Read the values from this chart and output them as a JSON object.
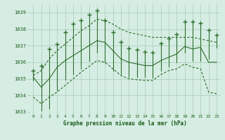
{
  "title": "Graphe pression niveau de la mer (hPa)",
  "hours": [
    0,
    1,
    2,
    3,
    4,
    5,
    6,
    7,
    8,
    9,
    10,
    11,
    12,
    13,
    14,
    15,
    16,
    17,
    18,
    19,
    20,
    21,
    22,
    23
  ],
  "pressure_spike_top": [
    1035.5,
    1035.8,
    1036.8,
    1037.1,
    1037.8,
    1038.3,
    1038.55,
    1038.85,
    1039.1,
    1038.55,
    1037.8,
    1037.2,
    1036.85,
    1036.75,
    1036.65,
    1036.6,
    1037.15,
    1037.45,
    1037.7,
    1038.45,
    1038.45,
    1038.35,
    1037.95,
    1037.65
  ],
  "pressure_spike_bot": [
    1034.9,
    1033.1,
    1033.2,
    1034.3,
    1034.95,
    1035.3,
    1035.6,
    1036.1,
    1036.6,
    1036.0,
    1035.5,
    1035.3,
    1035.1,
    1035.1,
    1035.1,
    1035.05,
    1035.5,
    1035.75,
    1036.0,
    1036.6,
    1036.1,
    1036.1,
    1036.2,
    1036.9
  ],
  "line_max": [
    1035.2,
    1035.5,
    1036.2,
    1036.7,
    1037.1,
    1037.5,
    1037.9,
    1038.2,
    1038.6,
    1038.5,
    1038.3,
    1038.0,
    1037.8,
    1037.7,
    1037.6,
    1037.5,
    1037.5,
    1037.5,
    1037.5,
    1037.5,
    1037.5,
    1037.4,
    1037.3,
    1037.2
  ],
  "line_avg": [
    1035.1,
    1034.5,
    1035.0,
    1035.7,
    1036.1,
    1036.4,
    1036.7,
    1037.0,
    1037.3,
    1037.2,
    1036.7,
    1036.2,
    1036.0,
    1035.9,
    1035.8,
    1035.8,
    1036.1,
    1036.3,
    1036.5,
    1036.95,
    1036.8,
    1036.9,
    1036.0,
    1036.0
  ],
  "line_min": [
    1033.9,
    1033.5,
    1033.9,
    1034.2,
    1034.6,
    1035.0,
    1035.4,
    1035.75,
    1036.1,
    1036.0,
    1035.6,
    1035.2,
    1035.0,
    1034.95,
    1034.9,
    1034.9,
    1035.25,
    1035.5,
    1035.6,
    1035.9,
    1035.7,
    1035.6,
    1034.2,
    1034.1
  ],
  "ylim": [
    1033.0,
    1039.5
  ],
  "yticks": [
    1033,
    1034,
    1035,
    1036,
    1037,
    1038,
    1039
  ],
  "bg_color": "#d6ede3",
  "grid_color": "#a8cdb8",
  "line_color": "#2d6e2d",
  "marker_color": "#2d6e2d",
  "title_color": "#1a5c1a"
}
